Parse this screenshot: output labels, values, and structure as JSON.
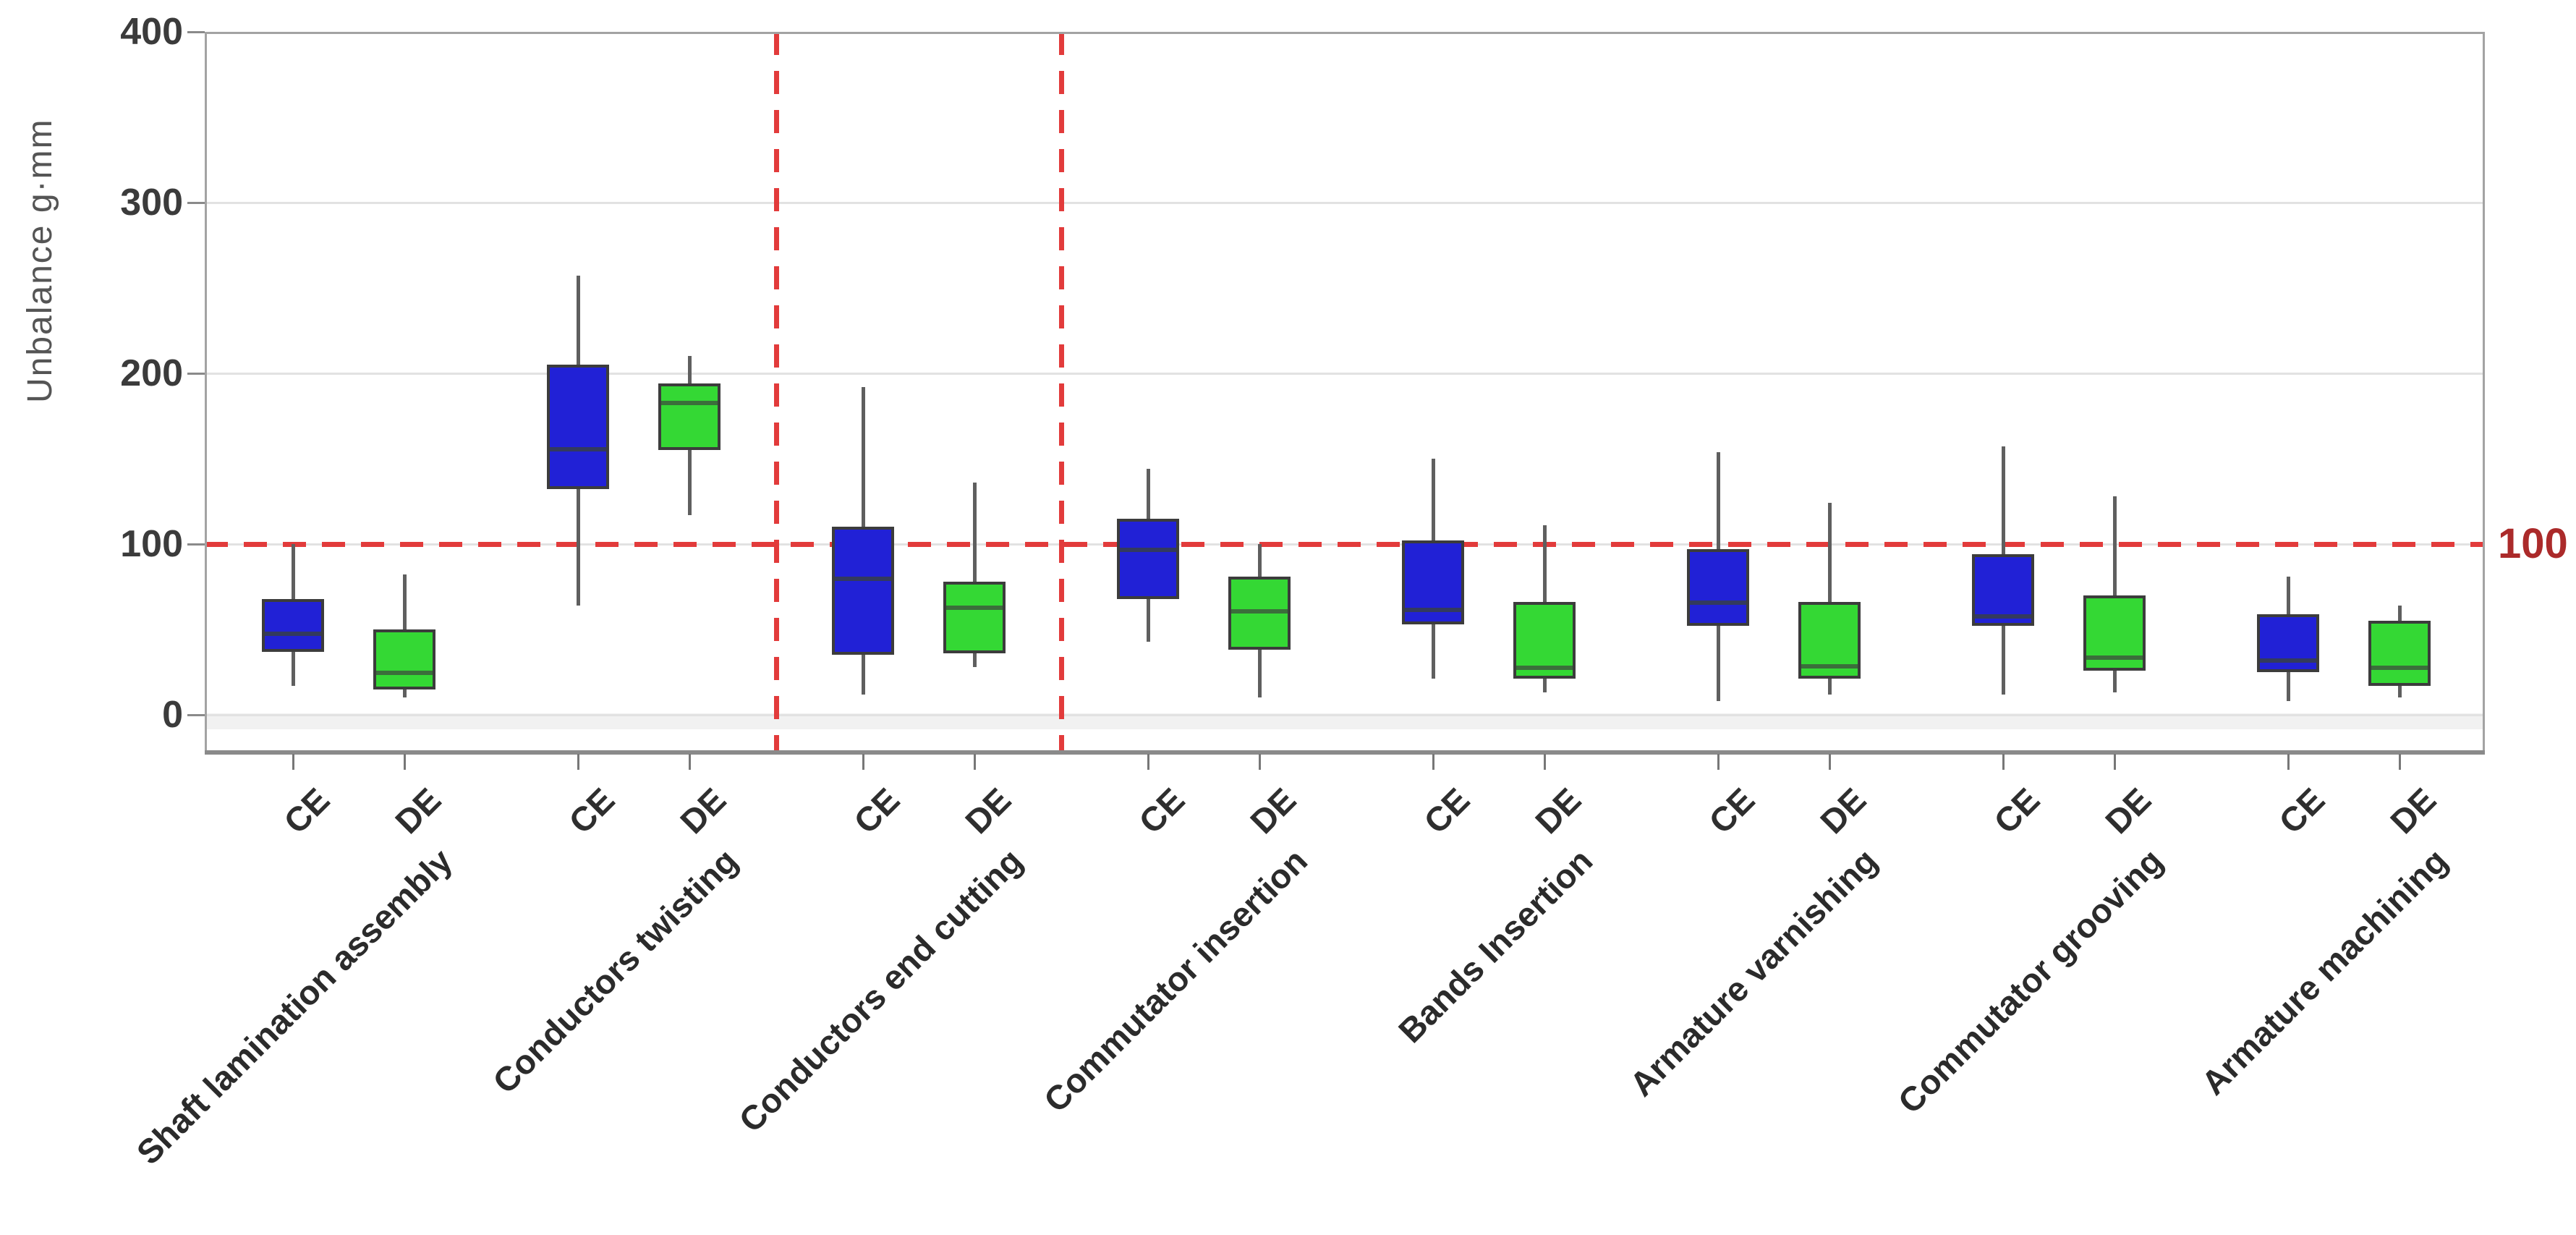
{
  "page": {
    "background": "#ffffff"
  },
  "y_axis": {
    "title": "Unbalance g·mm",
    "tick_labels": [
      "400",
      "300",
      "200",
      "100",
      "0"
    ]
  },
  "x_axis": {
    "sub_labels": [
      "CE",
      "DE"
    ]
  },
  "annotations": {
    "spec_limit_label": "100",
    "spec_limit_value": 100
  },
  "colors": {
    "ce_fill": "#2121d6",
    "ce_median": "#333a5e",
    "de_fill": "#34d834",
    "de_median": "#3b6e3b",
    "box_border": "#3c3c3c",
    "whisker": "#5f5f5f",
    "reference_red": "#e23b3b",
    "spec_label_red": "#ab2a2a",
    "gridline": "#e2e2e2",
    "axis": "#8a8a8a"
  },
  "chart_data": {
    "type": "boxplot",
    "title": "",
    "xlabel": "",
    "ylabel": "Unbalance g·mm",
    "ylim": [
      0,
      400
    ],
    "y_ticks": [
      0,
      100,
      200,
      300,
      400
    ],
    "grid": "horizontal",
    "legend_position": "none",
    "reference_lines": {
      "horizontal_value": 100,
      "horizontal_label": "100",
      "vertical_after_category_index": [
        1,
        2
      ]
    },
    "categories": [
      "Shaft lamination assembly",
      "Conductors twisting",
      "Conductors end cutting",
      "Commutator insertion",
      "Bands Insertion",
      "Armature varnishing",
      "Commutator grooving",
      "Armature machining"
    ],
    "series": [
      {
        "name": "CE",
        "color": "#2121d6",
        "boxes": [
          {
            "low": 17,
            "q1": 37,
            "median": 48,
            "q3": 68,
            "high": 100
          },
          {
            "low": 64,
            "q1": 132,
            "median": 156,
            "q3": 205,
            "high": 257
          },
          {
            "low": 12,
            "q1": 35,
            "median": 80,
            "q3": 110,
            "high": 192
          },
          {
            "low": 43,
            "q1": 68,
            "median": 97,
            "q3": 115,
            "high": 144
          },
          {
            "low": 21,
            "q1": 53,
            "median": 62,
            "q3": 102,
            "high": 150
          },
          {
            "low": 8,
            "q1": 52,
            "median": 66,
            "q3": 97,
            "high": 154
          },
          {
            "low": 12,
            "q1": 52,
            "median": 58,
            "q3": 94,
            "high": 157
          },
          {
            "low": 8,
            "q1": 25,
            "median": 32,
            "q3": 59,
            "high": 81
          }
        ]
      },
      {
        "name": "DE",
        "color": "#34d834",
        "boxes": [
          {
            "low": 10,
            "q1": 15,
            "median": 25,
            "q3": 50,
            "high": 82
          },
          {
            "low": 117,
            "q1": 155,
            "median": 183,
            "q3": 194,
            "high": 210
          },
          {
            "low": 28,
            "q1": 36,
            "median": 63,
            "q3": 78,
            "high": 136
          },
          {
            "low": 10,
            "q1": 38,
            "median": 61,
            "q3": 81,
            "high": 100
          },
          {
            "low": 13,
            "q1": 21,
            "median": 28,
            "q3": 66,
            "high": 111
          },
          {
            "low": 12,
            "q1": 21,
            "median": 29,
            "q3": 66,
            "high": 124
          },
          {
            "low": 13,
            "q1": 26,
            "median": 34,
            "q3": 70,
            "high": 128
          },
          {
            "low": 10,
            "q1": 17,
            "median": 28,
            "q3": 55,
            "high": 64
          }
        ]
      }
    ]
  }
}
